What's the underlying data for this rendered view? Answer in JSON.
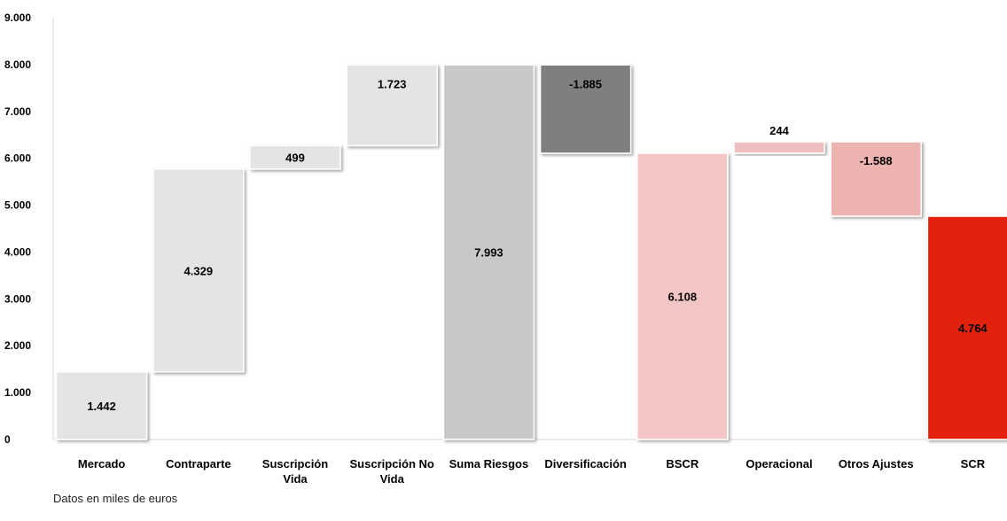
{
  "chart_data": {
    "type": "bar",
    "subtype": "waterfall",
    "title": "",
    "xlabel": "",
    "ylabel": "",
    "ylim": [
      0,
      9000
    ],
    "yticks": [
      "0",
      "1.000",
      "2.000",
      "3.000",
      "4.000",
      "5.000",
      "6.000",
      "7.000",
      "8.000",
      "9.000"
    ],
    "grid": false,
    "legend": "none",
    "bars": [
      {
        "category": [
          "Mercado"
        ],
        "base": 0,
        "top": 1442,
        "label": "1.442",
        "color": "#e4e4e4",
        "label_pos": "inside"
      },
      {
        "category": [
          "Contraparte"
        ],
        "base": 1442,
        "top": 5771,
        "label": "4.329",
        "color": "#e4e4e4",
        "label_pos": "inside"
      },
      {
        "category": [
          "Suscripción",
          "Vida"
        ],
        "base": 5771,
        "top": 6270,
        "label": "499",
        "color": "#e4e4e4",
        "label_pos": "inside"
      },
      {
        "category": [
          "Suscripción No",
          "Vida"
        ],
        "base": 6270,
        "top": 7993,
        "label": "1.723",
        "color": "#e4e4e4",
        "label_pos": "inside-top"
      },
      {
        "category": [
          "Suma Riesgos"
        ],
        "base": 0,
        "top": 7993,
        "label": "7.993",
        "color": "#c8c8c8",
        "label_pos": "inside"
      },
      {
        "category": [
          "Diversificación"
        ],
        "base": 6108,
        "top": 7993,
        "label": "-1.885",
        "color": "#7f7f7f",
        "label_pos": "inside-top"
      },
      {
        "category": [
          "BSCR"
        ],
        "base": 0,
        "top": 6108,
        "label": "6.108",
        "color": "#f4c5c5",
        "label_pos": "inside"
      },
      {
        "category": [
          "Operacional"
        ],
        "base": 6108,
        "top": 6352,
        "label": "244",
        "color": "#f0c0c0",
        "label_pos": "above"
      },
      {
        "category": [
          "Otros Ajustes"
        ],
        "base": 4764,
        "top": 6352,
        "label": "-1.588",
        "color": "#ecb3b1",
        "label_pos": "inside-top"
      },
      {
        "category": [
          "SCR"
        ],
        "base": 0,
        "top": 4764,
        "label": "4.764",
        "color": "#e3220b",
        "label_pos": "inside"
      }
    ]
  },
  "footnote": "Datos en miles de euros"
}
